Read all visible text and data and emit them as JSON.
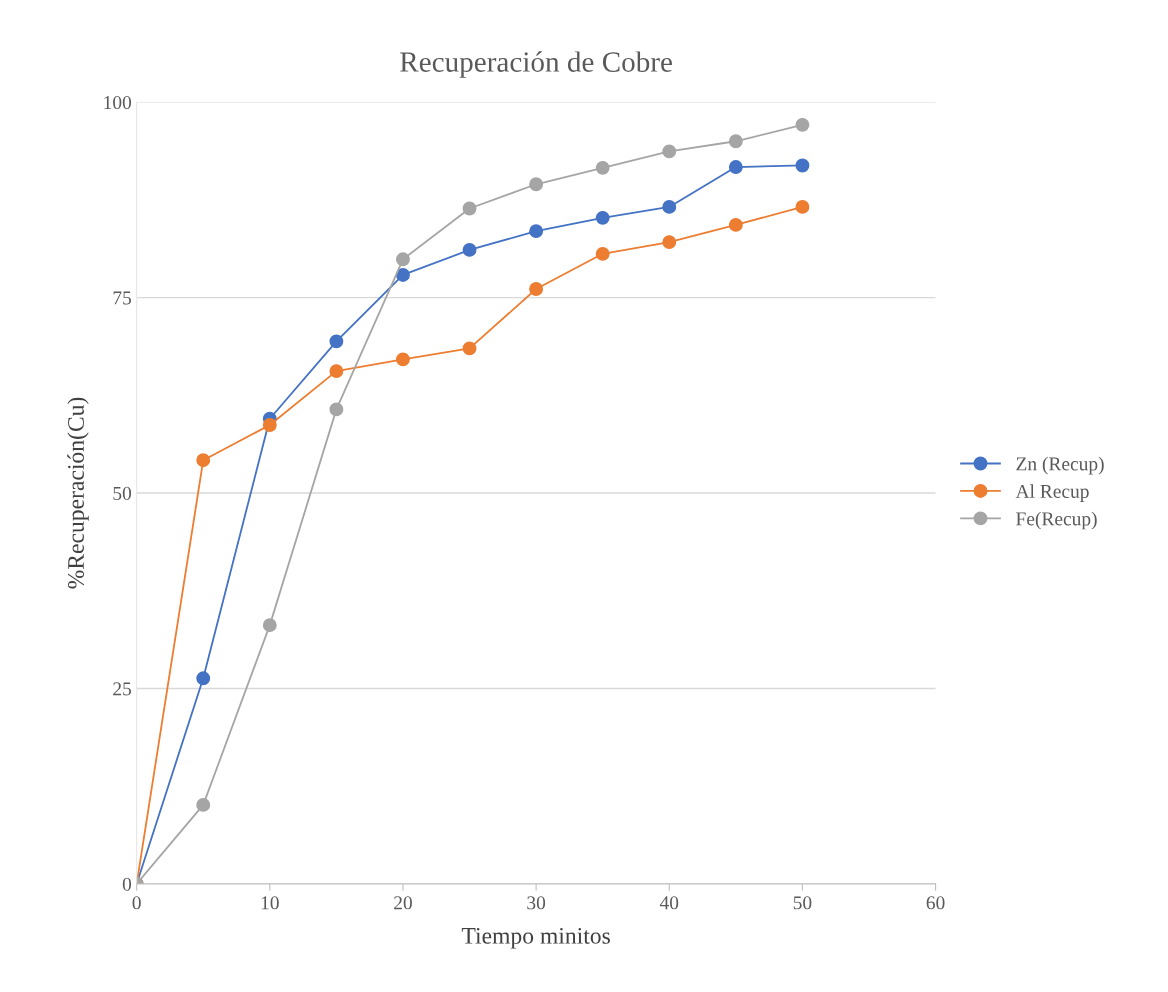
{
  "chart_data": {
    "type": "line",
    "title": "Recuperación de Cobre",
    "xlabel": "Tiempo minitos",
    "ylabel": "%Recuperación(Cu)",
    "x": [
      0,
      5,
      10,
      15,
      20,
      25,
      30,
      35,
      40,
      45,
      50
    ],
    "series": [
      {
        "name": "Zn (Recup)",
        "color": "#4472c4",
        "values": [
          0,
          26.3,
          59.5,
          69.4,
          77.9,
          81.1,
          83.5,
          85.2,
          86.6,
          91.7,
          91.9
        ]
      },
      {
        "name": "Al Recup",
        "color": "#ed7d31",
        "values": [
          0,
          54.2,
          58.7,
          65.6,
          67.1,
          68.5,
          76.1,
          80.6,
          82.1,
          84.3,
          86.6
        ]
      },
      {
        "name": "Fe(Recup)",
        "color": "#a5a5a5",
        "values": [
          0,
          10.1,
          33.1,
          60.7,
          79.9,
          86.4,
          89.5,
          91.6,
          93.7,
          95.0,
          97.1
        ]
      }
    ],
    "xlim": [
      0,
      60
    ],
    "xticks": [
      0,
      10,
      20,
      30,
      40,
      50,
      60
    ],
    "ylim": [
      0,
      100
    ],
    "yticks": [
      0,
      25,
      50,
      75,
      100
    ],
    "grid": "y",
    "legend": "right",
    "marker": "circle",
    "line_style": "solid"
  }
}
